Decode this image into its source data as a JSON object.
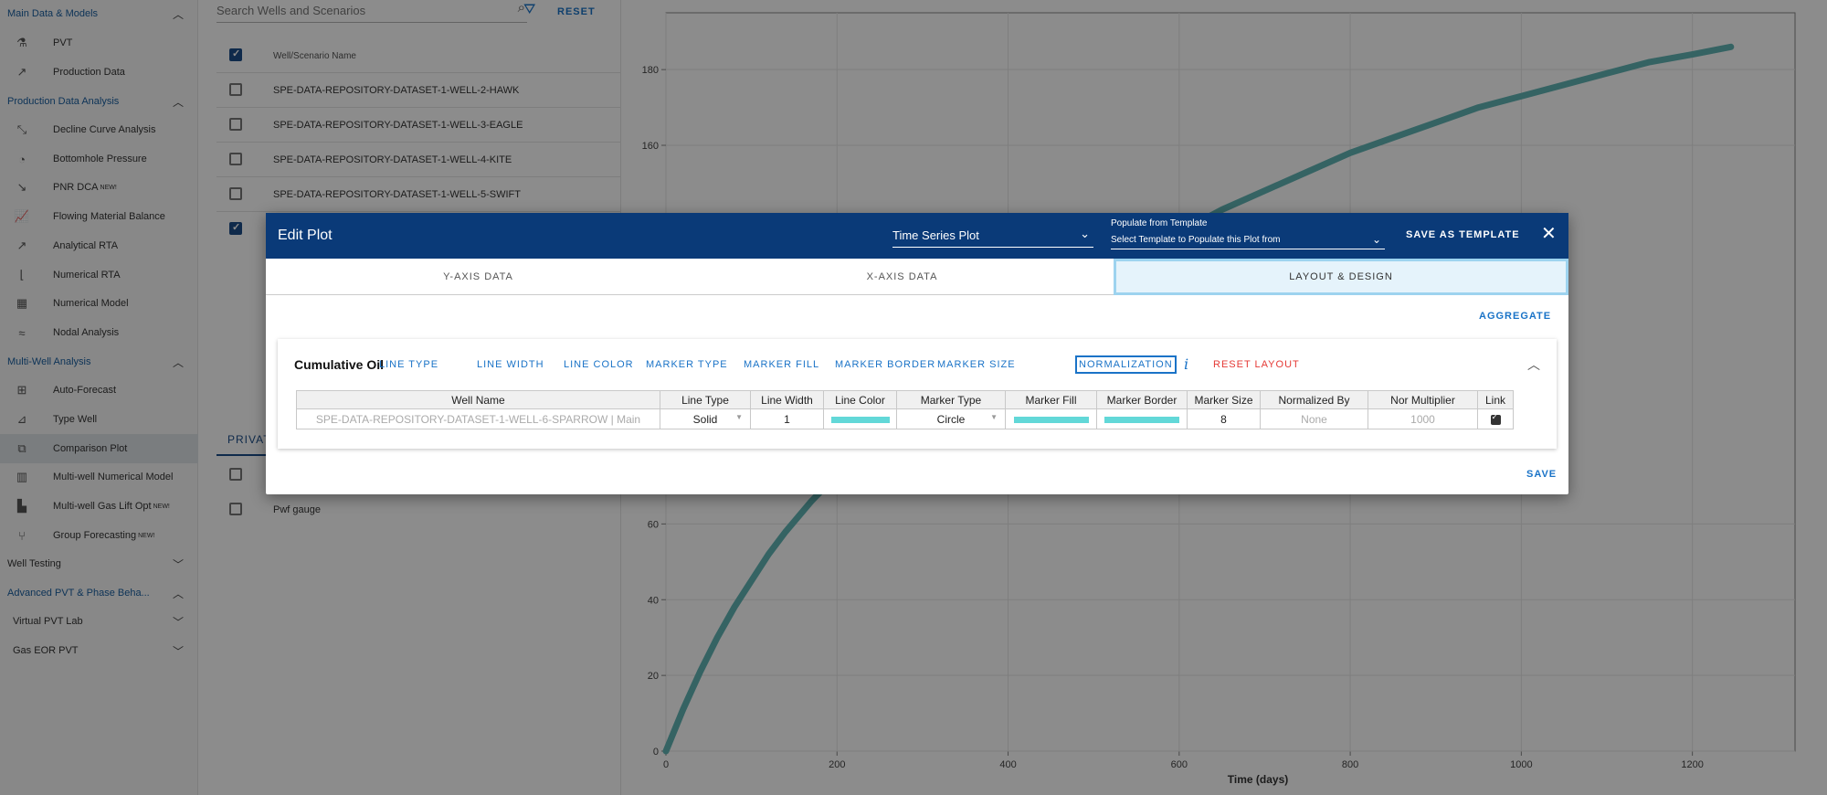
{
  "sidebar": {
    "sections": {
      "main": "Main Data & Models",
      "pda": "Production Data Analysis",
      "mwa": "Multi-Well Analysis",
      "well_testing": "Well Testing",
      "advanced_pvt": "Advanced PVT & Phase Beha...",
      "virtual_pvt": "Virtual PVT Lab",
      "gas_eor": "Gas EOR PVT"
    },
    "items": {
      "pvt": "PVT",
      "production_data": "Production Data",
      "dca": "Decline Curve Analysis",
      "bhp": "Bottomhole Pressure",
      "pnr": "PNR DCA",
      "fmb": "Flowing Material Balance",
      "arta": "Analytical RTA",
      "nrta": "Numerical RTA",
      "num_model": "Numerical Model",
      "nodal": "Nodal Analysis",
      "auto_forecast": "Auto-Forecast",
      "type_well": "Type Well",
      "comparison_plot": "Comparison Plot",
      "mw_numerical": "Multi-well Numerical Model",
      "mw_gaslift": "Multi-well Gas Lift Opt",
      "group_forecast": "Group Forecasting"
    },
    "new_badge": "NEW!"
  },
  "wells": {
    "search_placeholder": "Search Wells and Scenarios",
    "reset_label": "RESET",
    "header_name": "Well/Scenario Name",
    "rows": [
      "SPE-DATA-REPOSITORY-DATASET-1-WELL-2-HAWK",
      "SPE-DATA-REPOSITORY-DATASET-1-WELL-3-EAGLE",
      "SPE-DATA-REPOSITORY-DATASET-1-WELL-4-KITE",
      "SPE-DATA-REPOSITORY-DATASET-1-WELL-5-SWIFT"
    ],
    "private_tab": "PRIVAT",
    "private_rows": [
      "",
      "Pwf gauge"
    ]
  },
  "chart_data": {
    "type": "line",
    "title": "",
    "xlabel": "Time (days)",
    "ylabel": "",
    "xlim": [
      0,
      1320
    ],
    "ylim": [
      0,
      195
    ],
    "x_ticks": [
      "0",
      "200",
      "400",
      "600",
      "800",
      "1000",
      "1200"
    ],
    "y_ticks": [
      "0",
      "20",
      "40",
      "60",
      "160",
      "180"
    ],
    "grid": true,
    "series": [
      {
        "color": "#62b5b5",
        "x": [
          0,
          20,
          40,
          60,
          80,
          100,
          120,
          140,
          170,
          200,
          250,
          300,
          350,
          400,
          450,
          500,
          550,
          600,
          650,
          700,
          750,
          800,
          850,
          900,
          950,
          1000,
          1050,
          1100,
          1150,
          1200,
          1245
        ],
        "y": [
          0,
          11,
          21,
          30,
          38,
          45,
          52,
          58,
          66,
          73,
          84,
          94,
          103,
          111,
          118,
          125,
          131,
          137,
          143,
          148,
          153,
          158,
          162,
          166,
          170,
          173,
          176,
          179,
          182,
          184,
          186
        ]
      }
    ]
  },
  "modal": {
    "title": "Edit Plot",
    "plot_type": "Time Series Plot",
    "template_label": "Populate from Template",
    "template_placeholder": "Select Template to Populate this Plot from",
    "save_template": "SAVE AS TEMPLATE",
    "tabs": [
      "Y-AXIS DATA",
      "X-AXIS DATA",
      "LAYOUT & DESIGN"
    ],
    "aggregate": "AGGREGATE",
    "card_title": "Cumulative Oil",
    "options": [
      "LINE TYPE",
      "LINE WIDTH",
      "LINE COLOR",
      "MARKER TYPE",
      "MARKER FILL",
      "MARKER BORDER",
      "MARKER SIZE",
      "NORMALIZATION"
    ],
    "reset_layout": "RESET LAYOUT",
    "save": "SAVE",
    "table": {
      "headers": [
        "Well Name",
        "Line Type",
        "Line Width",
        "Line Color",
        "Marker Type",
        "Marker Fill",
        "Marker Border",
        "Marker Size",
        "Normalized By",
        "Nor Multiplier",
        "Link"
      ],
      "row": {
        "well_name": "SPE-DATA-REPOSITORY-DATASET-1-WELL-6-SPARROW | Main",
        "line_type": "Solid",
        "line_width": "1",
        "marker_type": "Circle",
        "marker_size": "8",
        "normalized_by": "None",
        "nor_multiplier": "1000"
      },
      "swatch_color": "#62d8d8"
    }
  }
}
